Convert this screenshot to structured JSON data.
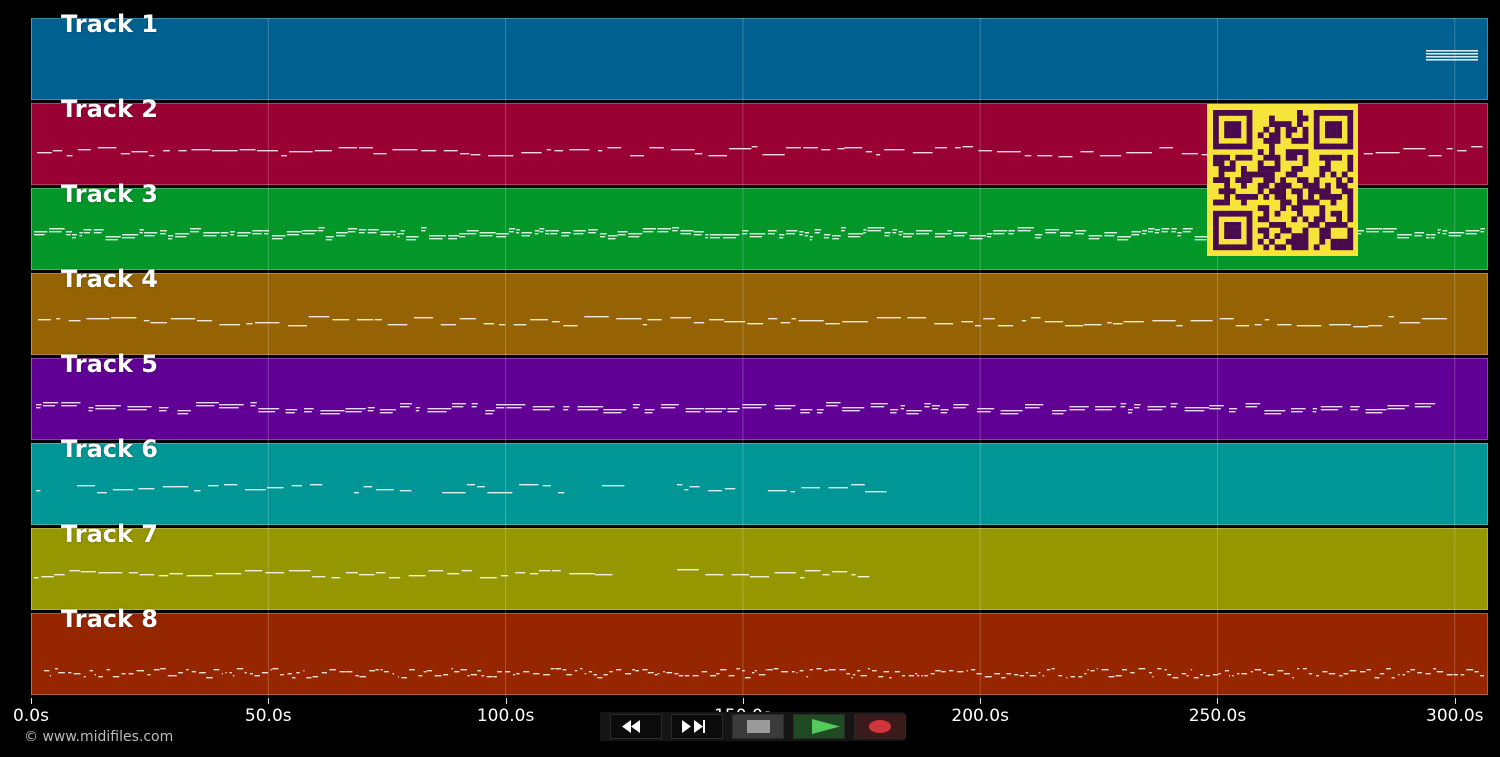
{
  "tracks": [
    {
      "label": "Track 1",
      "color": "#006090"
    },
    {
      "label": "Track 2",
      "color": "#990033"
    },
    {
      "label": "Track 3",
      "color": "#039629"
    },
    {
      "label": "Track 4",
      "color": "#956303"
    },
    {
      "label": "Track 5",
      "color": "#610094"
    },
    {
      "label": "Track 6",
      "color": "#009696"
    },
    {
      "label": "Track 7",
      "color": "#969600"
    },
    {
      "label": "Track 8",
      "color": "#952600"
    }
  ],
  "timeline": {
    "tick_labels": [
      "0.0s",
      "50.0s",
      "100.0s",
      "150.0s",
      "200.0s",
      "250.0s",
      "300.0s"
    ],
    "tick_values": [
      0,
      50,
      100,
      150,
      200,
      250,
      300
    ],
    "range_seconds": [
      0,
      307
    ]
  },
  "copyright": "© www.midifiles.com",
  "transport": {
    "buttons": [
      {
        "name": "rewind",
        "icon": "rewind-icon"
      },
      {
        "name": "fast-forward",
        "icon": "fast-forward-icon"
      },
      {
        "name": "stop",
        "icon": "stop-icon"
      },
      {
        "name": "play",
        "icon": "play-icon",
        "color": "#57c95c"
      },
      {
        "name": "record",
        "icon": "record-icon",
        "color": "#d0353b"
      }
    ]
  },
  "qr_code": {
    "color": "#f7e43a",
    "module_color": "#4a0a4e"
  }
}
